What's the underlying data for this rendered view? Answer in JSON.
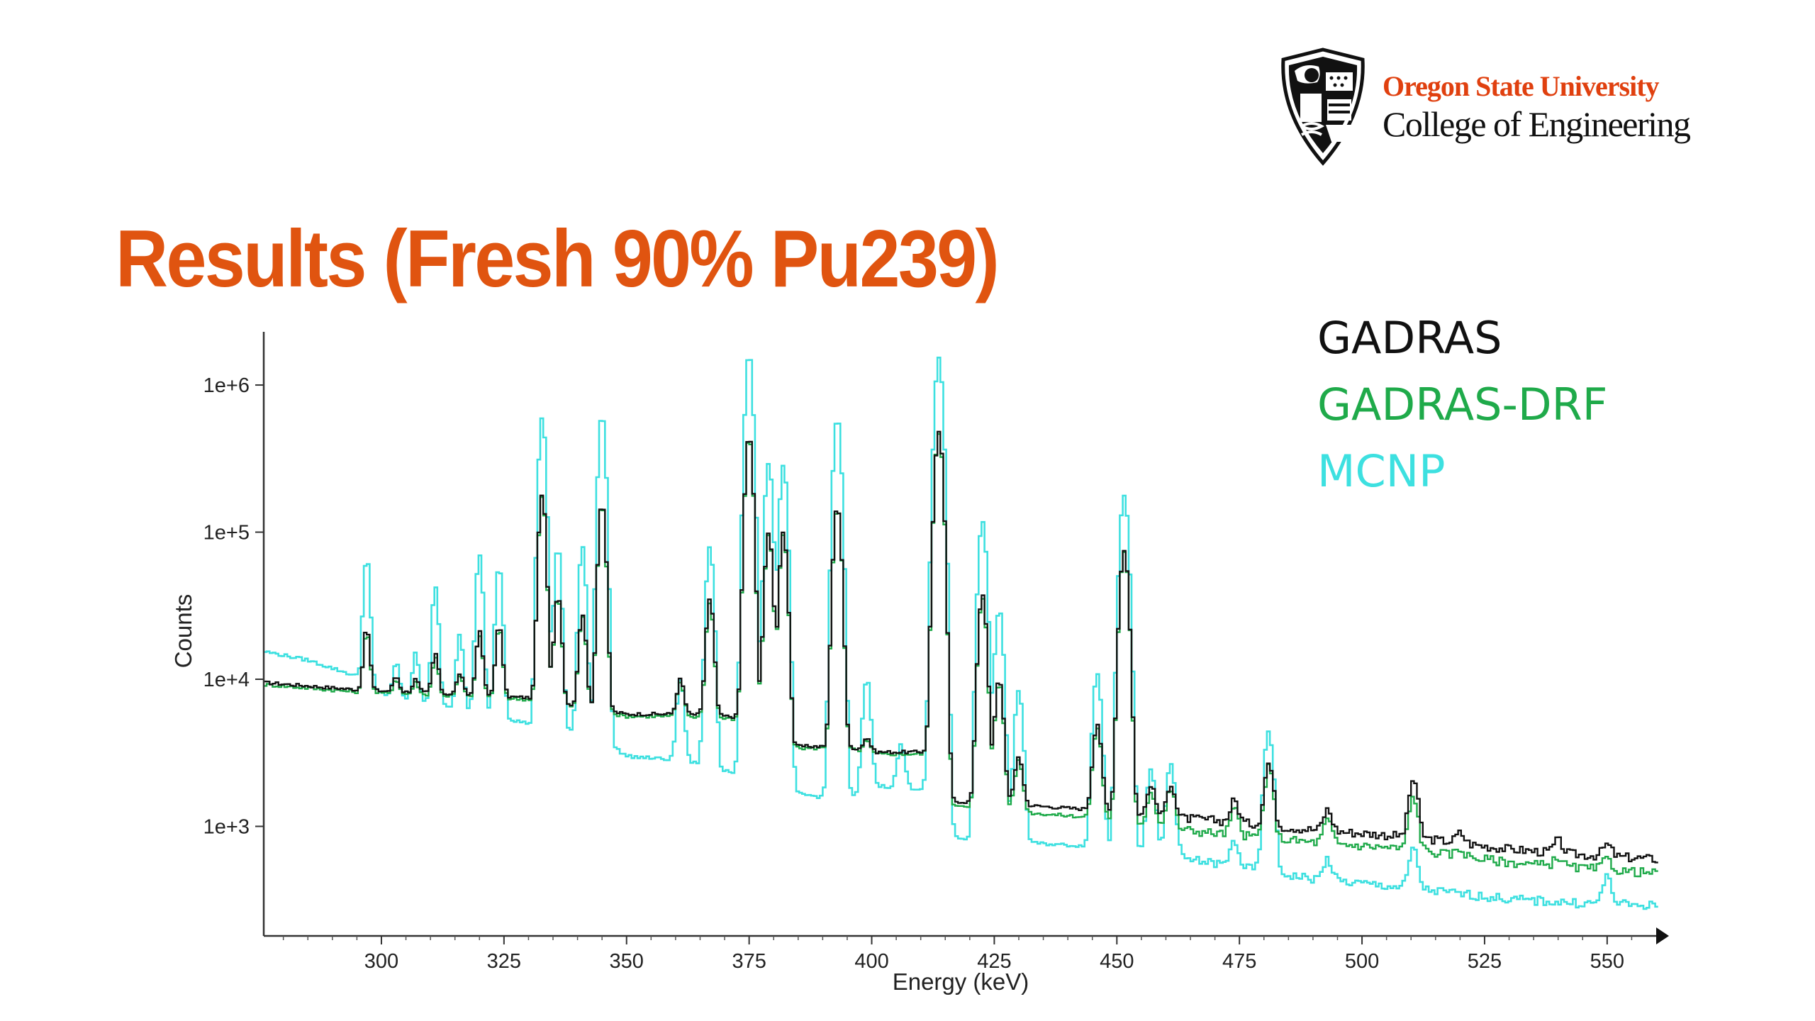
{
  "slide": {
    "title": "Results (Fresh 90% Pu239)",
    "title_color": "#e05410"
  },
  "logo": {
    "university": "Oregon State University",
    "college": "College of Engineering",
    "university_color": "#e0400f"
  },
  "chart_data": {
    "type": "line",
    "xlabel": "Energy (keV)",
    "ylabel": "Counts",
    "xlim": [
      276,
      560
    ],
    "ylim": [
      180,
      2300000
    ],
    "yscale": "log",
    "x_ticks": [
      300,
      325,
      350,
      375,
      400,
      425,
      450,
      475,
      500,
      525,
      550
    ],
    "x_tick_labels": [
      "300",
      "325",
      "350",
      "375",
      "400",
      "425",
      "450",
      "475",
      "500",
      "525",
      "550"
    ],
    "y_ticks": [
      1000,
      10000,
      100000,
      1000000
    ],
    "y_tick_labels": [
      "1e+3",
      "1e+4",
      "1e+5",
      "1e+6"
    ],
    "legend_placement": "top-right",
    "series": [
      {
        "name": "GADRAS",
        "color": "#111111",
        "baseline": [
          [
            276,
            9500
          ],
          [
            295,
            8500
          ],
          [
            330,
            7500
          ],
          [
            350,
            5800
          ],
          [
            362,
            5800
          ],
          [
            375,
            5500
          ],
          [
            383,
            3500
          ],
          [
            395,
            3500
          ],
          [
            400,
            3200
          ],
          [
            410,
            3200
          ],
          [
            413,
            3400
          ],
          [
            414,
            1500
          ],
          [
            430,
            1400
          ],
          [
            445,
            1300
          ],
          [
            452,
            1200
          ],
          [
            470,
            1100
          ],
          [
            490,
            950
          ],
          [
            510,
            850
          ],
          [
            530,
            700
          ],
          [
            545,
            640
          ],
          [
            560,
            600
          ]
        ],
        "peaks": [
          [
            297,
            22000
          ],
          [
            303,
            10500
          ],
          [
            307,
            10000
          ],
          [
            311,
            15000
          ],
          [
            316,
            11000
          ],
          [
            320,
            21000
          ],
          [
            324,
            23000
          ],
          [
            332.8,
            180000
          ],
          [
            336,
            38000
          ],
          [
            341,
            28000
          ],
          [
            345,
            160000
          ],
          [
            361,
            10000
          ],
          [
            367,
            35000
          ],
          [
            375,
            450000
          ],
          [
            379,
            100000
          ],
          [
            382,
            100000
          ],
          [
            393,
            150000
          ],
          [
            399,
            4000
          ],
          [
            406,
            3000
          ],
          [
            413.7,
            480000
          ],
          [
            422.6,
            38000
          ],
          [
            426,
            10000
          ],
          [
            430,
            3000
          ],
          [
            446,
            5000
          ],
          [
            451.5,
            75000
          ],
          [
            457,
            1900
          ],
          [
            461,
            2000
          ],
          [
            474,
            1500
          ],
          [
            481,
            2700
          ],
          [
            493,
            1300
          ],
          [
            510.5,
            2100
          ],
          [
            520,
            900
          ],
          [
            540,
            800
          ],
          [
            550,
            750
          ]
        ]
      },
      {
        "name": "GADRAS-DRF",
        "color": "#1faa4a",
        "baseline": [
          [
            276,
            9200
          ],
          [
            295,
            8200
          ],
          [
            330,
            7300
          ],
          [
            350,
            5600
          ],
          [
            362,
            5600
          ],
          [
            375,
            5300
          ],
          [
            383,
            3400
          ],
          [
            395,
            3400
          ],
          [
            400,
            3100
          ],
          [
            410,
            3100
          ],
          [
            413,
            3300
          ],
          [
            414,
            1400
          ],
          [
            430,
            1250
          ],
          [
            445,
            1150
          ],
          [
            452,
            1050
          ],
          [
            470,
            900
          ],
          [
            490,
            780
          ],
          [
            510,
            700
          ],
          [
            530,
            570
          ],
          [
            545,
            520
          ],
          [
            560,
            480
          ]
        ],
        "peaks": [
          [
            297,
            21000
          ],
          [
            303,
            10000
          ],
          [
            307,
            9500
          ],
          [
            311,
            14000
          ],
          [
            316,
            10500
          ],
          [
            320,
            20000
          ],
          [
            324,
            22000
          ],
          [
            332.8,
            175000
          ],
          [
            336,
            36000
          ],
          [
            341,
            27000
          ],
          [
            345,
            155000
          ],
          [
            361,
            9500
          ],
          [
            367,
            33000
          ],
          [
            375,
            440000
          ],
          [
            379,
            95000
          ],
          [
            382,
            95000
          ],
          [
            393,
            145000
          ],
          [
            399,
            3800
          ],
          [
            406,
            2900
          ],
          [
            413.7,
            470000
          ],
          [
            422.6,
            36000
          ],
          [
            426,
            9500
          ],
          [
            430,
            2800
          ],
          [
            446,
            4700
          ],
          [
            451.5,
            72000
          ],
          [
            457,
            1700
          ],
          [
            461,
            1800
          ],
          [
            474,
            1300
          ],
          [
            481,
            2500
          ],
          [
            493,
            1100
          ],
          [
            510.5,
            1600
          ],
          [
            520,
            700
          ],
          [
            540,
            620
          ],
          [
            550,
            600
          ]
        ]
      },
      {
        "name": "MCNP",
        "color": "#3de0e0",
        "baseline": [
          [
            276,
            15500
          ],
          [
            285,
            13500
          ],
          [
            295,
            10500
          ],
          [
            300,
            8000
          ],
          [
            320,
            6000
          ],
          [
            330,
            5000
          ],
          [
            345,
            4000
          ],
          [
            350,
            3000
          ],
          [
            362,
            2800
          ],
          [
            375,
            2200
          ],
          [
            383,
            1700
          ],
          [
            395,
            1500
          ],
          [
            400,
            1900
          ],
          [
            410,
            1800
          ],
          [
            413,
            2200
          ],
          [
            414,
            850
          ],
          [
            430,
            780
          ],
          [
            445,
            730
          ],
          [
            452,
            690
          ],
          [
            470,
            560
          ],
          [
            490,
            440
          ],
          [
            510,
            380
          ],
          [
            530,
            320
          ],
          [
            545,
            300
          ],
          [
            560,
            290
          ]
        ],
        "peaks": [
          [
            297,
            68000
          ],
          [
            303,
            13000
          ],
          [
            307,
            15000
          ],
          [
            311,
            42000
          ],
          [
            316,
            20000
          ],
          [
            320,
            70000
          ],
          [
            324,
            60000
          ],
          [
            332.8,
            600000
          ],
          [
            336,
            80000
          ],
          [
            341,
            80000
          ],
          [
            345,
            650000
          ],
          [
            361,
            10000
          ],
          [
            367,
            80000
          ],
          [
            375,
            1600000
          ],
          [
            379,
            300000
          ],
          [
            382,
            280000
          ],
          [
            393,
            600000
          ],
          [
            399,
            10000
          ],
          [
            406,
            3600
          ],
          [
            413.7,
            1500000
          ],
          [
            422.6,
            120000
          ],
          [
            426,
            30000
          ],
          [
            430,
            8500
          ],
          [
            446,
            11000
          ],
          [
            451.5,
            180000
          ],
          [
            457,
            2400
          ],
          [
            461,
            2700
          ],
          [
            474,
            800
          ],
          [
            481,
            4500
          ],
          [
            493,
            600
          ],
          [
            510.5,
            700
          ],
          [
            550,
            450
          ]
        ]
      }
    ]
  }
}
